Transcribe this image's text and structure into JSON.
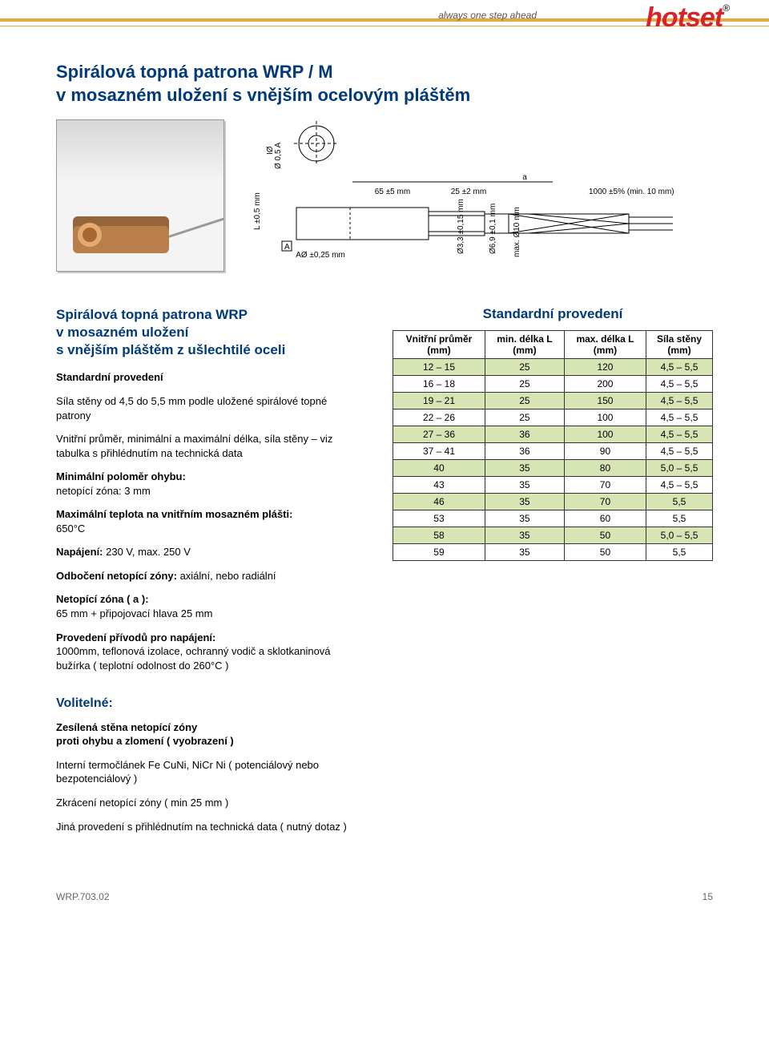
{
  "header": {
    "brand": "hotset",
    "reg": "®",
    "tagline": "always one step ahead"
  },
  "title_line1": "Spirálová topná patrona WRP / M",
  "title_line2": "v mosazném uložení s vnějším ocelovým pláštěm",
  "diagram": {
    "lbl_65": "65 ±5 mm",
    "lbl_25": "25 ±2 mm",
    "lbl_1000": "1000 ±5% (min. 10 mm)",
    "lbl_a": "a",
    "lbl_L": "L ±0,5 mm",
    "lbl_A": "A",
    "lbl_AOE": "AØ ±0,25 mm",
    "lbl_IOE": "IØ",
    "lbl_OE05A": "Ø 0,5 A",
    "lbl_d33": "Ø3,3 ±0,15 mm",
    "lbl_d69": "Ø6,9 ±0,1 mm",
    "lbl_d10": "max. Ø10 mm"
  },
  "left": {
    "sub_l1": "Spirálová topná patrona WRP",
    "sub_l2": "v mosazném uložení",
    "sub_l3": "s vnějším pláštěm z ušlechtilé oceli",
    "std_head": "Standardní provedení",
    "p1": "Síla stěny od 4,5 do 5,5 mm podle uložené spirálové topné patrony",
    "p2": "Vnitřní průměr, minimální a maximální délka, síla stěny – viz tabulka s přihlédnutím na technická data",
    "p3_b": "Minimální poloměr ohybu:",
    "p3_t": "netopící zóna: 3 mm",
    "p4_b": "Maximální teplota na vnitřním mosazném plášti:",
    "p4_t": "650°C",
    "p5_b": "Napájení:",
    "p5_t": " 230 V, max. 250 V",
    "p6_b": "Odbočení netopící zóny:",
    "p6_t": " axiální, nebo radiální",
    "p7_b": "Netopící zóna ( a ):",
    "p7_t": "65 mm + připojovací hlava 25 mm",
    "p8_b": "Provedení přívodů pro napájení:",
    "p8_t": "1000mm, teflonová izolace, ochranný vodič a sklotkaninová bužírka ( teplotní odolnost do 260°C )"
  },
  "table": {
    "title": "Standardní provedení",
    "headers": [
      "Vnitřní průměr (mm)",
      "min. délka L (mm)",
      "max. délka L (mm)",
      "Síla stěny (mm)"
    ],
    "rows": [
      [
        "12 – 15",
        "25",
        "120",
        "4,5 – 5,5"
      ],
      [
        "16 – 18",
        "25",
        "200",
        "4,5 – 5,5"
      ],
      [
        "19 – 21",
        "25",
        "150",
        "4,5 – 5,5"
      ],
      [
        "22 – 26",
        "25",
        "100",
        "4,5 – 5,5"
      ],
      [
        "27 – 36",
        "36",
        "100",
        "4,5 – 5,5"
      ],
      [
        "37 – 41",
        "36",
        "90",
        "4,5 – 5,5"
      ],
      [
        "40",
        "35",
        "80",
        "5,0 – 5,5"
      ],
      [
        "43",
        "35",
        "70",
        "4,5 – 5,5"
      ],
      [
        "46",
        "35",
        "70",
        "5,5"
      ],
      [
        "53",
        "35",
        "60",
        "5,5"
      ],
      [
        "58",
        "35",
        "50",
        "5,0 – 5,5"
      ],
      [
        "59",
        "35",
        "50",
        "5,5"
      ]
    ],
    "row_band_color": "#d7e5b5"
  },
  "optional": {
    "heading": "Volitelné:",
    "b1_b": "Zesílená stěna netopící zóny",
    "b1_t": "proti ohybu a zlomení ( vyobrazení )",
    "b2": "Interní termočlánek Fe CuNi, NiCr Ni ( potenciálový nebo bezpotenciálový )",
    "b3": "Zkrácení netopící zóny ( min 25 mm )",
    "b4": "Jiná provedení s přihlédnutím na technická data ( nutný dotaz )"
  },
  "footer": {
    "doc": "WRP.703.02",
    "page": "15"
  }
}
